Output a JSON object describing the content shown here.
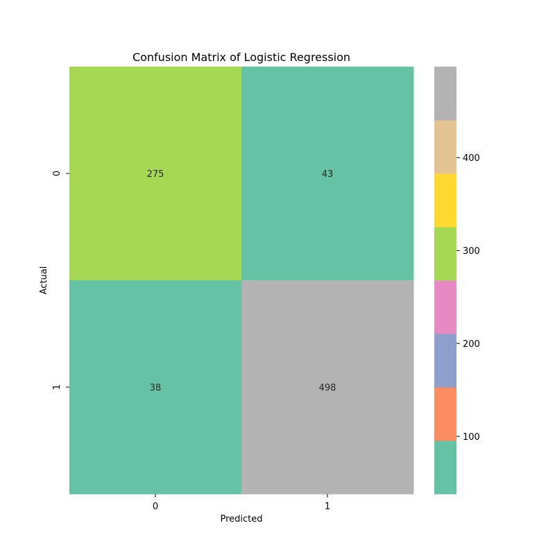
{
  "chart_data": {
    "type": "heatmap",
    "title": "Confusion Matrix of Logistic Regression",
    "xlabel": "Predicted",
    "ylabel": "Actual",
    "x_categories": [
      "0",
      "1"
    ],
    "y_categories": [
      "0",
      "1"
    ],
    "values": [
      [
        275,
        43
      ],
      [
        38,
        498
      ]
    ],
    "colorbar": {
      "range": [
        38,
        498
      ],
      "ticks": [
        100,
        200,
        300,
        400
      ],
      "palette": [
        "#66c2a5",
        "#fc8d62",
        "#8da0cb",
        "#e78ac3",
        "#a6d854",
        "#ffd92f",
        "#e5c494",
        "#b3b3b3"
      ]
    }
  }
}
